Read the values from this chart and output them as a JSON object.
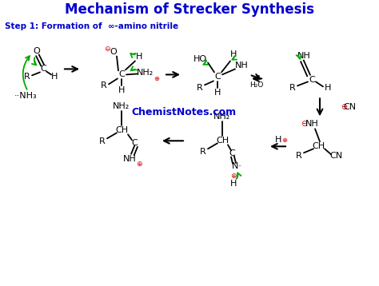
{
  "title": "Mechanism of Strecker Synthesis",
  "title_color": "#0000CC",
  "title_fontsize": 12,
  "step_label_bold": "Step 1: Formation of  ∞-amino nitrile",
  "step_color": "#0000CC",
  "watermark": "ChemistNotes.com",
  "watermark_color": "#0000CC",
  "bg_color": "#FFFFFF",
  "green": "#00AA00",
  "red": "#CC0000",
  "black": "#000000",
  "blue": "#0000CC"
}
